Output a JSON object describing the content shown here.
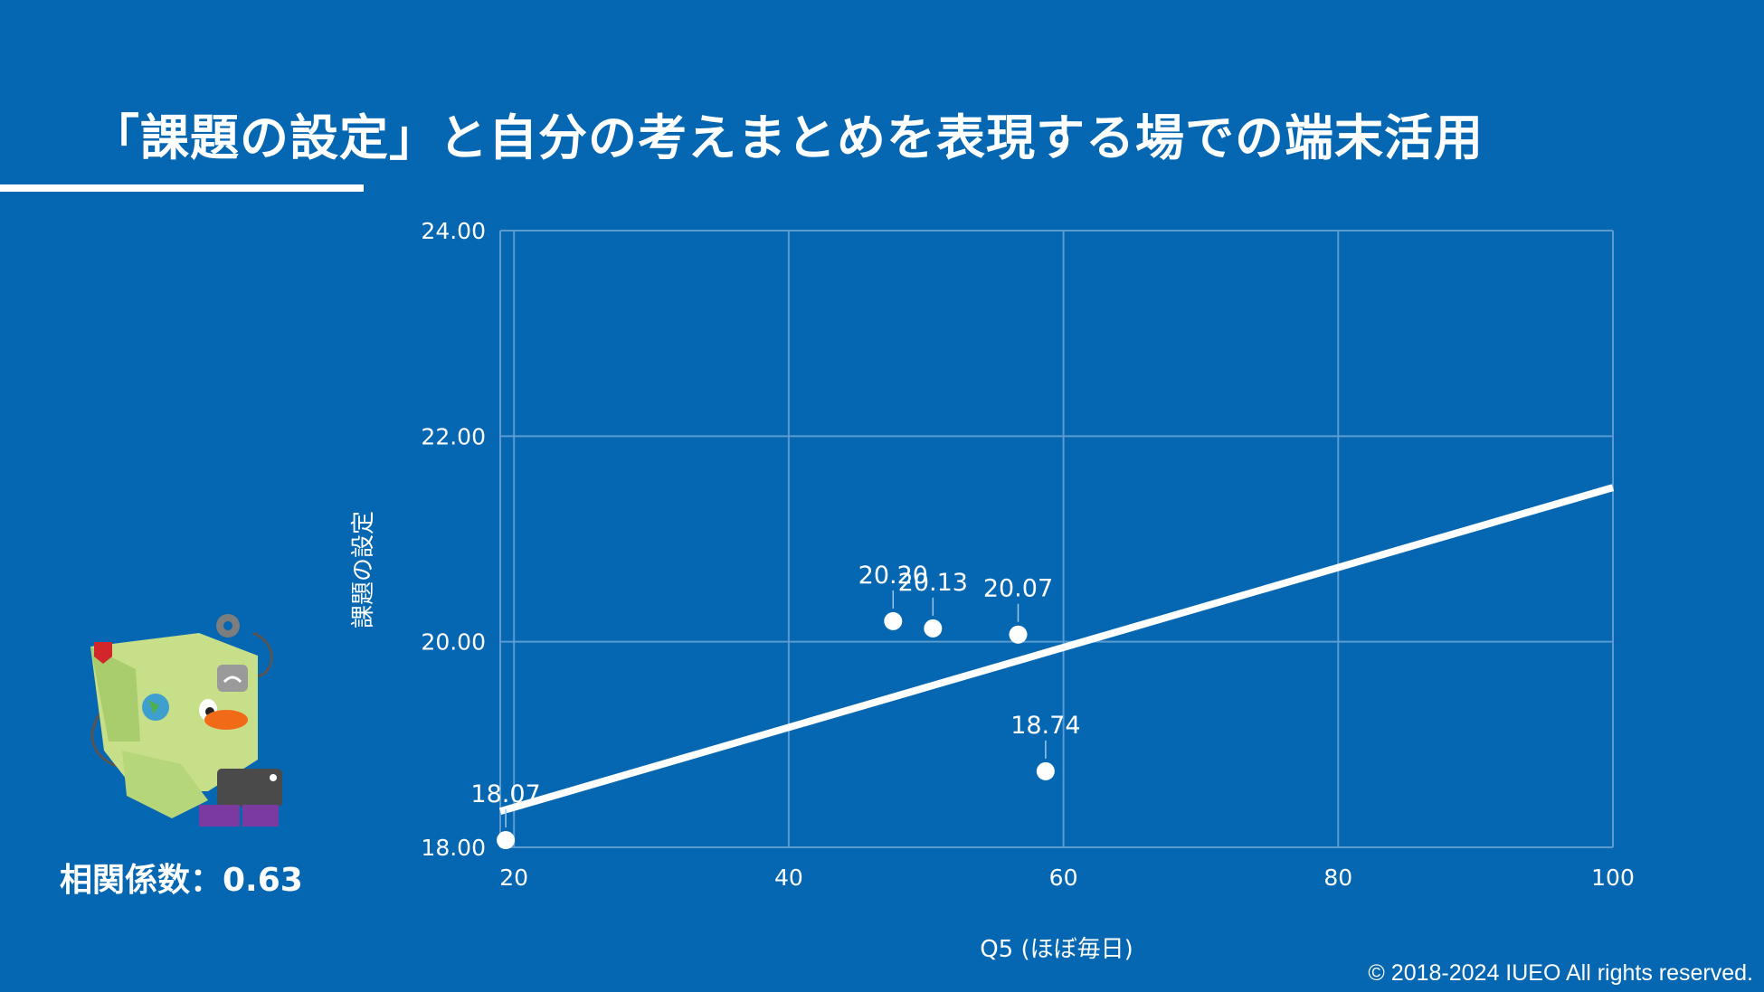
{
  "slide": {
    "title": "「課題の設定」と自分の考えまとめを表現する場での端末活用",
    "correlation_label": "相関係数：0.63",
    "copyright": "© 2018-2024 IUEO All rights reserved."
  },
  "colors": {
    "background": "#0567b2",
    "grid": "#5b9bd0",
    "foreground": "#ffffff"
  },
  "chart_data": {
    "type": "scatter",
    "title": "",
    "xlabel": "Q5 (ほぼ毎日)",
    "ylabel": "課題の設定",
    "xlim": [
      19,
      100
    ],
    "ylim": [
      18,
      24
    ],
    "x_ticks": [
      20,
      40,
      60,
      80,
      100
    ],
    "y_ticks": [
      18,
      20,
      22,
      24
    ],
    "x_tick_labels": [
      "20",
      "40",
      "60",
      "80",
      "100"
    ],
    "y_tick_labels": [
      "18.00",
      "20.00",
      "22.00",
      "24.00"
    ],
    "grid": true,
    "points": [
      {
        "x": 19.4,
        "y": 18.07,
        "label": "18.07"
      },
      {
        "x": 47.6,
        "y": 20.2,
        "label": "20.20"
      },
      {
        "x": 50.5,
        "y": 20.13,
        "label": "20.13"
      },
      {
        "x": 56.7,
        "y": 20.07,
        "label": "20.07"
      },
      {
        "x": 58.7,
        "y": 18.74,
        "label": "18.74"
      }
    ],
    "trendline": {
      "x": [
        19,
        100
      ],
      "y": [
        18.35,
        21.5
      ]
    }
  }
}
